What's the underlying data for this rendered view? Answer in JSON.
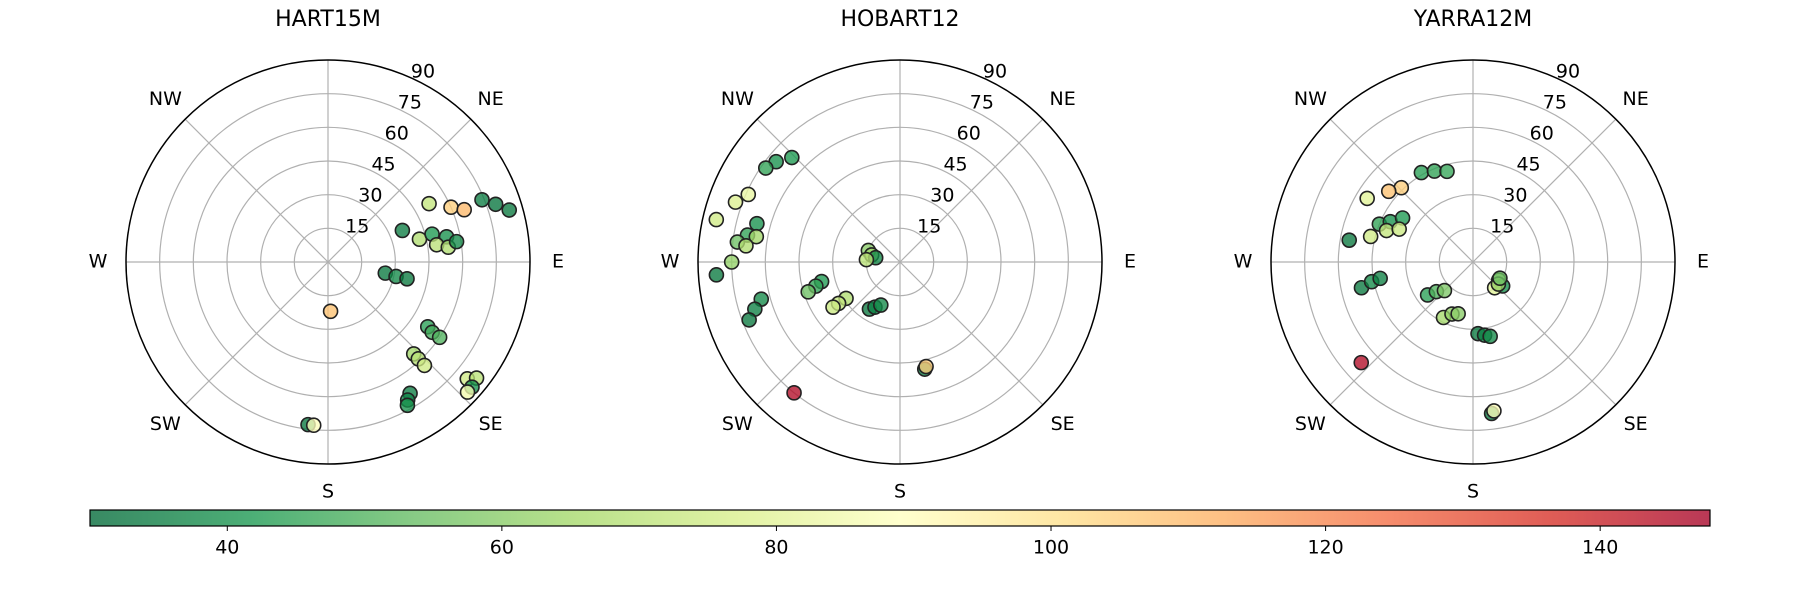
{
  "chart_data": [
    {
      "type": "polar_scatter",
      "title": "HART15M",
      "azimuth": [
        67,
        60,
        66,
        69,
        68,
        71,
        74,
        76,
        75,
        78,
        81,
        83,
        81,
        101,
        102,
        102,
        177,
        123,
        124,
        124,
        137,
        137,
        137,
        130,
        128,
        131,
        133,
        148,
        150,
        151,
        187,
        185
      ],
      "r": [
        36,
        52,
        60,
        65,
        74,
        79,
        84,
        42,
        48,
        54,
        49,
        54,
        58,
        26,
        31,
        36,
        22,
        53,
        56,
        60,
        56,
        59,
        63,
        81,
        84,
        85,
        85,
        69,
        71,
        73,
        73,
        73
      ],
      "values": [
        35,
        72,
        105,
        110,
        35,
        33,
        34,
        68,
        42,
        40,
        70,
        68,
        38,
        34,
        38,
        34,
        108,
        44,
        48,
        50,
        65,
        70,
        75,
        75,
        70,
        40,
        85,
        35,
        37,
        40,
        34,
        88
      ],
      "rlim": [
        0,
        90
      ],
      "rticks": [
        15,
        30,
        45,
        60,
        75,
        90
      ],
      "thetaticks": [
        {
          "value": 0,
          "label": null
        },
        {
          "value": 45,
          "label": "NE"
        },
        {
          "value": 90,
          "label": "E"
        },
        {
          "value": 135,
          "label": "SE"
        },
        {
          "value": 180,
          "label": "S"
        },
        {
          "value": 225,
          "label": "SW"
        },
        {
          "value": 270,
          "label": "W"
        },
        {
          "value": 315,
          "label": "NW"
        }
      ]
    },
    {
      "type": "polar_scatter",
      "title": "HOBART12",
      "azimuth": [
        314,
        309,
        305,
        294,
        290,
        283,
        285,
        280,
        277,
        280,
        276,
        270,
        266,
        255,
        252,
        249,
        256,
        254,
        252,
        236,
        236,
        236,
        213,
        209,
        204,
        290,
        284,
        280,
        274,
        167,
        166,
        219
      ],
      "r": [
        67,
        71,
        73,
        74,
        78,
        84,
        66,
        69,
        73,
        65,
        69,
        75,
        82,
        64,
        68,
        72,
        36,
        39,
        43,
        29,
        33,
        36,
        25,
        23,
        21,
        15,
        13,
        11,
        15,
        49,
        48,
        75
      ],
      "values": [
        42,
        40,
        45,
        82,
        78,
        75,
        40,
        45,
        55,
        65,
        68,
        62,
        34,
        38,
        36,
        34,
        42,
        45,
        55,
        68,
        72,
        74,
        34,
        36,
        38,
        60,
        64,
        38,
        70,
        34,
        105,
        145
      ],
      "rlim": [
        0,
        90
      ],
      "rticks": [
        15,
        30,
        45,
        60,
        75,
        90
      ],
      "thetaticks": [
        {
          "value": 0,
          "label": null
        },
        {
          "value": 45,
          "label": "NE"
        },
        {
          "value": 90,
          "label": "E"
        },
        {
          "value": 135,
          "label": "SE"
        },
        {
          "value": 180,
          "label": "S"
        },
        {
          "value": 225,
          "label": "SW"
        },
        {
          "value": 270,
          "label": "W"
        },
        {
          "value": 315,
          "label": "NW"
        }
      ]
    },
    {
      "type": "polar_scatter",
      "title": "YARRA12M",
      "azimuth": [
        330,
        337,
        344,
        316,
        310,
        301,
        280,
        284,
        292,
        296,
        302,
        290,
        294,
        257,
        259,
        260,
        234,
        231,
        225,
        208,
        202,
        196,
        176,
        171,
        167,
        125,
        129,
        140,
        131,
        121,
        173,
        172,
        228
      ],
      "r": [
        46,
        44,
        42,
        46,
        49,
        55,
        56,
        47,
        45,
        41,
        37,
        41,
        36,
        51,
        46,
        42,
        25,
        21,
        18,
        28,
        25,
        24,
        32,
        33,
        34,
        14,
        17,
        15,
        15,
        14,
        68,
        67,
        67
      ],
      "values": [
        44,
        45,
        46,
        105,
        108,
        80,
        34,
        75,
        45,
        40,
        42,
        72,
        74,
        34,
        38,
        36,
        44,
        50,
        58,
        65,
        62,
        60,
        34,
        36,
        38,
        60,
        40,
        80,
        64,
        55,
        34,
        88,
        145
      ],
      "rlim": [
        0,
        90
      ],
      "rticks": [
        15,
        30,
        45,
        60,
        75,
        90
      ],
      "thetaticks": [
        {
          "value": 0,
          "label": null
        },
        {
          "value": 45,
          "label": "NE"
        },
        {
          "value": 90,
          "label": "E"
        },
        {
          "value": 135,
          "label": "SE"
        },
        {
          "value": 180,
          "label": "S"
        },
        {
          "value": 225,
          "label": "SW"
        },
        {
          "value": 270,
          "label": "W"
        },
        {
          "value": 315,
          "label": "NW"
        }
      ]
    }
  ],
  "colorbar": {
    "lim": [
      30,
      148
    ],
    "ticks": [
      40,
      60,
      80,
      100,
      120,
      140
    ],
    "colormap": [
      "#006837",
      "#1a9850",
      "#66bd63",
      "#a6d96a",
      "#d9ef8b",
      "#ffffbf",
      "#fee08b",
      "#fdae61",
      "#f46d43",
      "#d73027",
      "#a50026"
    ]
  }
}
